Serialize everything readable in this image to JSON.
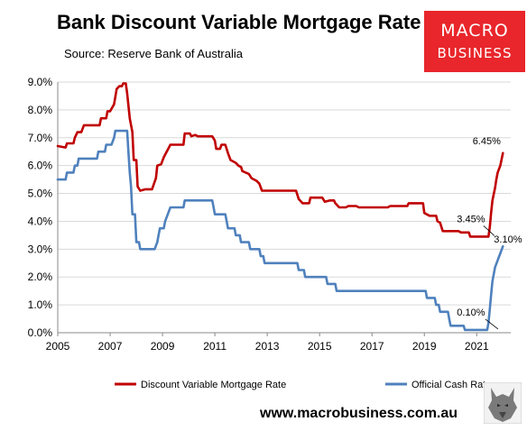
{
  "header": {
    "title": "Bank Discount Variable Mortgage Rate",
    "subtitle": "Source: Reserve Bank of Australia"
  },
  "logo": {
    "line1": "MACRO",
    "line2": "BUSINESS",
    "bg_color": "#e8262b"
  },
  "footer": {
    "url": "www.macrobusiness.com.au"
  },
  "colors": {
    "mortgage": "#c00000",
    "cash": "#4f81bd",
    "grid": "#d9d9d9",
    "axis": "#888888"
  },
  "chart_data": {
    "type": "line",
    "title": "Bank Discount Variable Mortgage Rate",
    "xlim": [
      2005,
      2022.3
    ],
    "ylim": [
      0,
      9
    ],
    "x_ticks": [
      {
        "value": 2005,
        "label": "2005"
      },
      {
        "value": 2007,
        "label": "2007"
      },
      {
        "value": 2009,
        "label": "2009"
      },
      {
        "value": 2011,
        "label": "2011"
      },
      {
        "value": 2013,
        "label": "2013"
      },
      {
        "value": 2015,
        "label": "2015"
      },
      {
        "value": 2017,
        "label": "2017"
      },
      {
        "value": 2019,
        "label": "2019"
      },
      {
        "value": 2021,
        "label": "2021"
      }
    ],
    "y_ticks": [
      {
        "value": 0,
        "label": "0.0%"
      },
      {
        "value": 1,
        "label": "1.0%"
      },
      {
        "value": 2,
        "label": "2.0%"
      },
      {
        "value": 3,
        "label": "3.0%"
      },
      {
        "value": 4,
        "label": "4.0%"
      },
      {
        "value": 5,
        "label": "5.0%"
      },
      {
        "value": 6,
        "label": "6.0%"
      },
      {
        "value": 7,
        "label": "7.0%"
      },
      {
        "value": 8,
        "label": "8.0%"
      },
      {
        "value": 9,
        "label": "9.0%"
      }
    ],
    "grid": true,
    "legend_position": "bottom",
    "series": [
      {
        "name": "Discount Variable Mortgage Rate",
        "color": "#c00000",
        "points": [
          [
            2005.0,
            6.7
          ],
          [
            2005.3,
            6.65
          ],
          [
            2005.35,
            6.8
          ],
          [
            2005.6,
            6.8
          ],
          [
            2005.65,
            7.0
          ],
          [
            2005.75,
            7.2
          ],
          [
            2005.9,
            7.2
          ],
          [
            2006.0,
            7.45
          ],
          [
            2006.6,
            7.45
          ],
          [
            2006.65,
            7.7
          ],
          [
            2006.85,
            7.7
          ],
          [
            2006.9,
            7.95
          ],
          [
            2007.0,
            7.95
          ],
          [
            2007.15,
            8.2
          ],
          [
            2007.25,
            8.75
          ],
          [
            2007.35,
            8.85
          ],
          [
            2007.45,
            8.85
          ],
          [
            2007.5,
            8.95
          ],
          [
            2007.6,
            8.95
          ],
          [
            2007.65,
            8.6
          ],
          [
            2007.75,
            7.7
          ],
          [
            2007.85,
            7.2
          ],
          [
            2007.9,
            6.2
          ],
          [
            2008.0,
            6.2
          ],
          [
            2008.05,
            5.25
          ],
          [
            2008.15,
            5.1
          ],
          [
            2008.35,
            5.15
          ],
          [
            2008.6,
            5.15
          ],
          [
            2008.75,
            5.55
          ],
          [
            2008.8,
            6.0
          ],
          [
            2008.95,
            6.05
          ],
          [
            2009.05,
            6.3
          ],
          [
            2009.3,
            6.75
          ],
          [
            2009.8,
            6.75
          ],
          [
            2009.85,
            7.15
          ],
          [
            2010.05,
            7.15
          ],
          [
            2010.1,
            7.05
          ],
          [
            2010.25,
            7.1
          ],
          [
            2010.35,
            7.05
          ],
          [
            2010.9,
            7.05
          ],
          [
            2011.0,
            6.9
          ],
          [
            2011.05,
            6.6
          ],
          [
            2011.2,
            6.6
          ],
          [
            2011.25,
            6.75
          ],
          [
            2011.4,
            6.75
          ],
          [
            2011.5,
            6.45
          ],
          [
            2011.6,
            6.2
          ],
          [
            2011.8,
            6.1
          ],
          [
            2011.9,
            6.0
          ],
          [
            2012.0,
            5.95
          ],
          [
            2012.05,
            5.8
          ],
          [
            2012.3,
            5.7
          ],
          [
            2012.4,
            5.55
          ],
          [
            2012.5,
            5.5
          ],
          [
            2012.6,
            5.45
          ],
          [
            2012.7,
            5.35
          ],
          [
            2012.8,
            5.1
          ],
          [
            2014.0,
            5.1
          ],
          [
            2014.1,
            5.1
          ],
          [
            2014.2,
            4.8
          ],
          [
            2014.35,
            4.65
          ],
          [
            2014.6,
            4.65
          ],
          [
            2014.65,
            4.85
          ],
          [
            2015.1,
            4.85
          ],
          [
            2015.2,
            4.7
          ],
          [
            2015.4,
            4.75
          ],
          [
            2015.55,
            4.75
          ],
          [
            2015.6,
            4.65
          ],
          [
            2015.75,
            4.5
          ],
          [
            2016.0,
            4.5
          ],
          [
            2016.1,
            4.55
          ],
          [
            2016.4,
            4.55
          ],
          [
            2016.5,
            4.5
          ],
          [
            2017.6,
            4.5
          ],
          [
            2017.7,
            4.55
          ],
          [
            2018.0,
            4.55
          ],
          [
            2018.35,
            4.55
          ],
          [
            2018.4,
            4.65
          ],
          [
            2018.95,
            4.65
          ],
          [
            2019.0,
            4.3
          ],
          [
            2019.2,
            4.2
          ],
          [
            2019.45,
            4.2
          ],
          [
            2019.5,
            4.0
          ],
          [
            2019.6,
            3.95
          ],
          [
            2019.7,
            3.65
          ],
          [
            2020.3,
            3.65
          ],
          [
            2020.4,
            3.6
          ],
          [
            2020.7,
            3.6
          ],
          [
            2020.75,
            3.45
          ],
          [
            2021.45,
            3.45
          ],
          [
            2021.5,
            3.8
          ],
          [
            2021.55,
            4.3
          ],
          [
            2021.6,
            4.75
          ],
          [
            2021.7,
            5.2
          ],
          [
            2021.75,
            5.5
          ],
          [
            2021.8,
            5.75
          ],
          [
            2021.9,
            6.0
          ],
          [
            2022.0,
            6.45
          ]
        ]
      },
      {
        "name": "Official Cash Rate",
        "color": "#4f81bd",
        "points": [
          [
            2005.0,
            5.5
          ],
          [
            2005.3,
            5.5
          ],
          [
            2005.35,
            5.75
          ],
          [
            2005.6,
            5.75
          ],
          [
            2005.65,
            6.0
          ],
          [
            2005.75,
            6.0
          ],
          [
            2005.8,
            6.25
          ],
          [
            2006.5,
            6.25
          ],
          [
            2006.55,
            6.5
          ],
          [
            2006.8,
            6.5
          ],
          [
            2006.85,
            6.75
          ],
          [
            2007.0,
            6.75
          ],
          [
            2007.05,
            6.75
          ],
          [
            2007.15,
            7.0
          ],
          [
            2007.2,
            7.25
          ],
          [
            2007.65,
            7.25
          ],
          [
            2007.7,
            6.5
          ],
          [
            2007.75,
            5.75
          ],
          [
            2007.8,
            5.25
          ],
          [
            2007.85,
            4.25
          ],
          [
            2007.95,
            4.25
          ],
          [
            2008.0,
            3.25
          ],
          [
            2008.1,
            3.25
          ],
          [
            2008.15,
            3.0
          ],
          [
            2008.7,
            3.0
          ],
          [
            2008.8,
            3.25
          ],
          [
            2008.85,
            3.5
          ],
          [
            2008.9,
            3.75
          ],
          [
            2009.05,
            3.75
          ],
          [
            2009.1,
            4.0
          ],
          [
            2009.2,
            4.25
          ],
          [
            2009.3,
            4.5
          ],
          [
            2009.8,
            4.5
          ],
          [
            2009.85,
            4.75
          ],
          [
            2010.9,
            4.75
          ],
          [
            2010.95,
            4.5
          ],
          [
            2011.0,
            4.25
          ],
          [
            2011.4,
            4.25
          ],
          [
            2011.45,
            4.0
          ],
          [
            2011.5,
            3.75
          ],
          [
            2011.75,
            3.75
          ],
          [
            2011.8,
            3.5
          ],
          [
            2011.95,
            3.5
          ],
          [
            2012.0,
            3.25
          ],
          [
            2012.3,
            3.25
          ],
          [
            2012.35,
            3.0
          ],
          [
            2012.7,
            3.0
          ],
          [
            2012.75,
            2.75
          ],
          [
            2012.85,
            2.75
          ],
          [
            2012.9,
            2.5
          ],
          [
            2014.15,
            2.5
          ],
          [
            2014.2,
            2.25
          ],
          [
            2014.4,
            2.25
          ],
          [
            2014.45,
            2.0
          ],
          [
            2015.25,
            2.0
          ],
          [
            2015.3,
            1.75
          ],
          [
            2015.6,
            1.75
          ],
          [
            2015.65,
            1.5
          ],
          [
            2018.6,
            1.5
          ],
          [
            2018.75,
            1.5
          ],
          [
            2019.05,
            1.5
          ],
          [
            2019.1,
            1.25
          ],
          [
            2019.4,
            1.25
          ],
          [
            2019.45,
            1.0
          ],
          [
            2019.55,
            1.0
          ],
          [
            2019.6,
            0.75
          ],
          [
            2019.9,
            0.75
          ],
          [
            2019.95,
            0.5
          ],
          [
            2020.0,
            0.25
          ],
          [
            2020.5,
            0.25
          ],
          [
            2020.55,
            0.1
          ],
          [
            2021.4,
            0.1
          ],
          [
            2021.45,
            0.35
          ],
          [
            2021.5,
            0.85
          ],
          [
            2021.55,
            1.35
          ],
          [
            2021.6,
            1.85
          ],
          [
            2021.7,
            2.35
          ],
          [
            2021.8,
            2.6
          ],
          [
            2021.9,
            2.85
          ],
          [
            2022.0,
            3.1
          ]
        ]
      }
    ],
    "annotations": [
      {
        "label": "6.45%",
        "x": 2022.0,
        "y": 6.45
      },
      {
        "label": "3.45%",
        "x": 2021.4,
        "y": 3.45
      },
      {
        "label": "3.10%",
        "x": 2022.0,
        "y": 3.1
      },
      {
        "label": "0.10%",
        "x": 2021.4,
        "y": 0.1
      }
    ]
  }
}
